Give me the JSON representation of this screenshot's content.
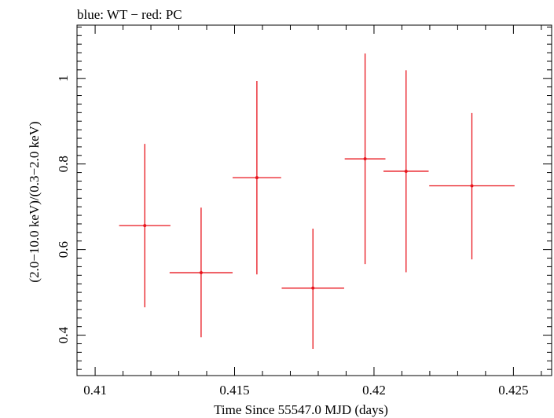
{
  "chart_data": {
    "type": "scatter",
    "title": "blue: WT − red: PC",
    "xlabel": "Time Since 55547.0 MJD (days)",
    "ylabel": "(2.0−10.0 keV)/(0.3−2.0 keV)",
    "xlim": [
      0.40935,
      0.42637
    ],
    "ylim": [
      0.3056,
      1.1244
    ],
    "x_major_ticks": [
      0.41,
      0.415,
      0.42,
      0.425
    ],
    "x_tick_labels": [
      "0.41",
      "0.415",
      "0.42",
      "0.425"
    ],
    "y_major_ticks": [
      0.4,
      0.6,
      0.8,
      1.0
    ],
    "y_tick_labels": [
      "0.4",
      "0.6",
      "0.8",
      "1"
    ],
    "series": [
      {
        "name": "PC",
        "color": "#e8141c",
        "points": [
          {
            "x": 0.41178,
            "xerr": 0.00092,
            "y": 0.656,
            "ylo": 0.465,
            "yhi": 0.847
          },
          {
            "x": 0.4138,
            "xerr": 0.00113,
            "y": 0.546,
            "ylo": 0.395,
            "yhi": 0.698
          },
          {
            "x": 0.4158,
            "xerr": 0.00087,
            "y": 0.768,
            "ylo": 0.542,
            "yhi": 0.994
          },
          {
            "x": 0.41781,
            "xerr": 0.00112,
            "y": 0.51,
            "ylo": 0.368,
            "yhi": 0.649
          },
          {
            "x": 0.41968,
            "xerr": 0.00073,
            "y": 0.812,
            "ylo": 0.566,
            "yhi": 1.058
          },
          {
            "x": 0.42115,
            "xerr": 0.00081,
            "y": 0.783,
            "ylo": 0.547,
            "yhi": 1.019
          },
          {
            "x": 0.42351,
            "xerr": 0.00153,
            "y": 0.749,
            "ylo": 0.577,
            "yhi": 0.919
          }
        ]
      }
    ]
  }
}
